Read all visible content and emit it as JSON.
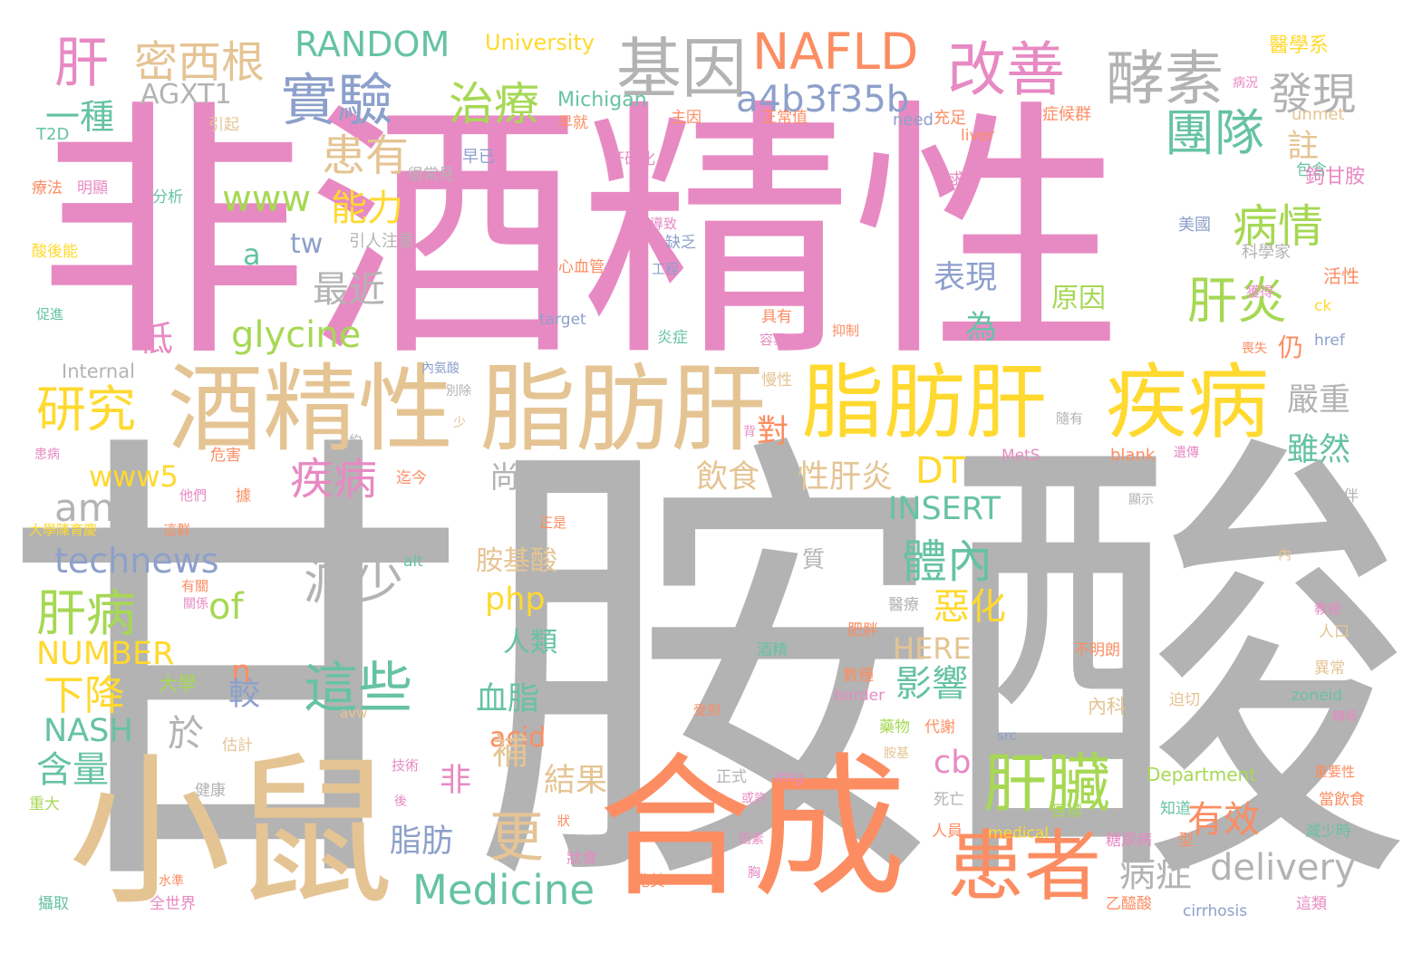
{
  "palette": {
    "pink": "#e78ac3",
    "gray": "#b3b3b3",
    "tan": "#e5c494",
    "orange": "#fc8d62",
    "yellow": "#ffd92f",
    "green": "#a6d854",
    "teal": "#66c2a5",
    "blue": "#8da0cb"
  },
  "words": [
    {
      "text": "非酒精性",
      "color": "pink"
    },
    {
      "text": "甘胺酸",
      "color": "gray"
    },
    {
      "text": "小鼠",
      "color": "tan"
    },
    {
      "text": "合成",
      "color": "orange"
    },
    {
      "text": "酒精性",
      "color": "tan"
    },
    {
      "text": "脂肪肝",
      "color": "tan"
    },
    {
      "text": "脂肪肝",
      "color": "yellow"
    },
    {
      "text": "疾病",
      "color": "yellow"
    },
    {
      "text": "患者",
      "color": "orange"
    },
    {
      "text": "肝臟",
      "color": "green"
    },
    {
      "text": "基因",
      "color": "gray"
    },
    {
      "text": "NAFLD",
      "color": "orange"
    },
    {
      "text": "改善",
      "color": "pink"
    },
    {
      "text": "酵素",
      "color": "gray"
    },
    {
      "text": "實驗",
      "color": "blue"
    },
    {
      "text": "肝",
      "color": "pink"
    },
    {
      "text": "密西根",
      "color": "tan"
    },
    {
      "text": "RANDOM",
      "color": "teal"
    },
    {
      "text": "University",
      "color": "yellow"
    },
    {
      "text": "治療",
      "color": "green"
    },
    {
      "text": "a4b3f35b",
      "color": "blue"
    },
    {
      "text": "發現",
      "color": "gray"
    },
    {
      "text": "醫學系",
      "color": "yellow"
    },
    {
      "text": "AGXT1",
      "color": "gray"
    },
    {
      "text": "一種",
      "color": "teal"
    },
    {
      "text": "Michigan",
      "color": "teal"
    },
    {
      "text": "早就",
      "color": "orange"
    },
    {
      "text": "病況",
      "color": "pink"
    },
    {
      "text": "unmet",
      "color": "tan"
    },
    {
      "text": "團隊",
      "color": "teal"
    },
    {
      "text": "患有",
      "color": "tan"
    },
    {
      "text": "主因",
      "color": "orange"
    },
    {
      "text": "正常值",
      "color": "orange"
    },
    {
      "text": "need",
      "color": "blue"
    },
    {
      "text": "充足",
      "color": "orange"
    },
    {
      "text": "症候群",
      "color": "orange"
    },
    {
      "text": "註",
      "color": "tan"
    },
    {
      "text": "引起",
      "color": "tan"
    },
    {
      "text": "T2D",
      "color": "teal"
    },
    {
      "text": "liver",
      "color": "orange"
    },
    {
      "text": "早已",
      "color": "blue"
    },
    {
      "text": "很常見",
      "color": "gray"
    },
    {
      "text": "肝硬化",
      "color": "pink"
    },
    {
      "text": "需求",
      "color": "pink"
    },
    {
      "text": "包含",
      "color": "teal"
    },
    {
      "text": "鉤甘胺",
      "color": "pink"
    },
    {
      "text": "療法",
      "color": "orange"
    },
    {
      "text": "明顯",
      "color": "pink"
    },
    {
      "text": "分析",
      "color": "teal"
    },
    {
      "text": "www",
      "color": "green"
    },
    {
      "text": "能力",
      "color": "yellow"
    },
    {
      "text": "病情",
      "color": "green"
    },
    {
      "text": "a",
      "color": "teal"
    },
    {
      "text": "tw",
      "color": "blue"
    },
    {
      "text": "引人注意",
      "color": "gray"
    },
    {
      "text": "導致",
      "color": "pink"
    },
    {
      "text": "缺乏",
      "color": "blue"
    },
    {
      "text": "美國",
      "color": "blue"
    },
    {
      "text": "科學家",
      "color": "gray"
    },
    {
      "text": "酸後能",
      "color": "yellow"
    },
    {
      "text": "心血管",
      "color": "orange"
    },
    {
      "text": "工程",
      "color": "blue"
    },
    {
      "text": "表現",
      "color": "blue"
    },
    {
      "text": "最近",
      "color": "gray"
    },
    {
      "text": "肝炎",
      "color": "green"
    },
    {
      "text": "原因",
      "color": "green"
    },
    {
      "text": "獲得",
      "color": "pink"
    },
    {
      "text": "活性",
      "color": "orange"
    },
    {
      "text": "促進",
      "color": "teal"
    },
    {
      "text": "target",
      "color": "blue"
    },
    {
      "text": "具有",
      "color": "orange"
    },
    {
      "text": "抑制",
      "color": "orange"
    },
    {
      "text": "為",
      "color": "teal"
    },
    {
      "text": "ck",
      "color": "yellow"
    },
    {
      "text": "glycine",
      "color": "green"
    },
    {
      "text": "低",
      "color": "pink"
    },
    {
      "text": "炎症",
      "color": "teal"
    },
    {
      "text": "容易",
      "color": "pink"
    },
    {
      "text": "仍",
      "color": "orange"
    },
    {
      "text": "喪失",
      "color": "orange"
    },
    {
      "text": "href",
      "color": "blue"
    },
    {
      "text": "Internal",
      "color": "gray"
    },
    {
      "text": "內氨酸",
      "color": "blue"
    },
    {
      "text": "慢性",
      "color": "tan"
    },
    {
      "text": "研究",
      "color": "yellow"
    },
    {
      "text": "別除",
      "color": "gray"
    },
    {
      "text": "嚴重",
      "color": "gray"
    },
    {
      "text": "少",
      "color": "tan"
    },
    {
      "text": "對",
      "color": "orange"
    },
    {
      "text": "隨有",
      "color": "gray"
    },
    {
      "text": "背",
      "color": "pink"
    },
    {
      "text": "患病",
      "color": "pink"
    },
    {
      "text": "約",
      "color": "gray"
    },
    {
      "text": "雖然",
      "color": "teal"
    },
    {
      "text": "危害",
      "color": "orange"
    },
    {
      "text": "www5",
      "color": "yellow"
    },
    {
      "text": "疾病",
      "color": "pink"
    },
    {
      "text": "迄今",
      "color": "orange"
    },
    {
      "text": "尚未",
      "color": "gray"
    },
    {
      "text": "飲食",
      "color": "tan"
    },
    {
      "text": "性肝炎",
      "color": "tan"
    },
    {
      "text": "DT",
      "color": "yellow"
    },
    {
      "text": "MetS",
      "color": "pink"
    },
    {
      "text": "遺傳",
      "color": "pink"
    },
    {
      "text": "blank",
      "color": "orange"
    },
    {
      "text": "amp",
      "color": "gray"
    },
    {
      "text": "他們",
      "color": "pink"
    },
    {
      "text": "據",
      "color": "orange"
    },
    {
      "text": "顯示",
      "color": "gray"
    },
    {
      "text": "常伴",
      "color": "gray"
    },
    {
      "text": "INSERT",
      "color": "teal"
    },
    {
      "text": "大學陳育慶",
      "color": "yellow"
    },
    {
      "text": "這群",
      "color": "orange"
    },
    {
      "text": "正是",
      "color": "orange"
    },
    {
      "text": "形成",
      "color": "gray"
    },
    {
      "text": "technews",
      "color": "blue"
    },
    {
      "text": "減少",
      "color": "gray"
    },
    {
      "text": "胺基酸",
      "color": "tan"
    },
    {
      "text": "體內",
      "color": "teal"
    },
    {
      "text": "alt",
      "color": "teal"
    },
    {
      "text": "質",
      "color": "gray"
    },
    {
      "text": "內",
      "color": "tan"
    },
    {
      "text": "有關",
      "color": "orange"
    },
    {
      "text": "關係",
      "color": "pink"
    },
    {
      "text": "肝病",
      "color": "green"
    },
    {
      "text": "of",
      "color": "green"
    },
    {
      "text": "php",
      "color": "yellow"
    },
    {
      "text": "惡化",
      "color": "yellow"
    },
    {
      "text": "醫療",
      "color": "gray"
    },
    {
      "text": "教授",
      "color": "pink"
    },
    {
      "text": "NUMBER",
      "color": "yellow"
    },
    {
      "text": "人類",
      "color": "teal"
    },
    {
      "text": "肥胖",
      "color": "orange"
    },
    {
      "text": "HERE",
      "color": "tan"
    },
    {
      "text": "不明朗",
      "color": "orange"
    },
    {
      "text": "人口",
      "color": "tan"
    },
    {
      "text": "n",
      "color": "orange"
    },
    {
      "text": "酒精",
      "color": "teal"
    },
    {
      "text": "下降",
      "color": "yellow"
    },
    {
      "text": "這些",
      "color": "teal"
    },
    {
      "text": "異常",
      "color": "tan"
    },
    {
      "text": "大學",
      "color": "green"
    },
    {
      "text": "數種",
      "color": "orange"
    },
    {
      "text": "較",
      "color": "blue"
    },
    {
      "text": "border",
      "color": "pink"
    },
    {
      "text": "影響",
      "color": "teal"
    },
    {
      "text": "血脂",
      "color": "teal"
    },
    {
      "text": "avw",
      "color": "tan"
    },
    {
      "text": "內科",
      "color": "tan"
    },
    {
      "text": "迫切",
      "color": "tan"
    },
    {
      "text": "zoneid",
      "color": "teal"
    },
    {
      "text": "NASH",
      "color": "teal"
    },
    {
      "text": "受到",
      "color": "orange"
    },
    {
      "text": "轉移",
      "color": "pink"
    },
    {
      "text": "藥物",
      "color": "green"
    },
    {
      "text": "代謝",
      "color": "orange"
    },
    {
      "text": "估計",
      "color": "tan"
    },
    {
      "text": "acid",
      "color": "orange"
    },
    {
      "text": "src",
      "color": "blue"
    },
    {
      "text": "於",
      "color": "gray"
    },
    {
      "text": "胺基",
      "color": "tan"
    },
    {
      "text": "含量",
      "color": "teal"
    },
    {
      "text": "cb",
      "color": "pink"
    },
    {
      "text": "技術",
      "color": "pink"
    },
    {
      "text": "正式",
      "color": "gray"
    },
    {
      "text": "img",
      "color": "pink"
    },
    {
      "text": "Department",
      "color": "green"
    },
    {
      "text": "重要性",
      "color": "orange"
    },
    {
      "text": "非",
      "color": "pink"
    },
    {
      "text": "補",
      "color": "tan"
    },
    {
      "text": "結果",
      "color": "tan"
    },
    {
      "text": "或許",
      "color": "pink"
    },
    {
      "text": "健康",
      "color": "gray"
    },
    {
      "text": "死亡",
      "color": "gray"
    },
    {
      "text": "重大",
      "color": "green"
    },
    {
      "text": "後",
      "color": "pink"
    },
    {
      "text": "知道",
      "color": "teal"
    },
    {
      "text": "當飲食",
      "color": "orange"
    },
    {
      "text": "有效",
      "color": "orange"
    },
    {
      "text": "更",
      "color": "tan"
    },
    {
      "text": "目標",
      "color": "green"
    },
    {
      "text": "狀",
      "color": "orange"
    },
    {
      "text": "人員",
      "color": "orange"
    },
    {
      "text": "medical",
      "color": "yellow"
    },
    {
      "text": "減少時",
      "color": "teal"
    },
    {
      "text": "脂肪",
      "color": "blue"
    },
    {
      "text": "因素",
      "color": "pink"
    },
    {
      "text": "糖尿病",
      "color": "pink"
    },
    {
      "text": "型",
      "color": "orange"
    },
    {
      "text": "狀會",
      "color": "pink"
    },
    {
      "text": "病症",
      "color": "gray"
    },
    {
      "text": "delivery",
      "color": "gray"
    },
    {
      "text": "Medicine",
      "color": "teal"
    },
    {
      "text": "水準",
      "color": "orange"
    },
    {
      "text": "胸",
      "color": "pink"
    },
    {
      "text": "尤其",
      "color": "orange"
    },
    {
      "text": "攝取",
      "color": "teal"
    },
    {
      "text": "全世界",
      "color": "pink"
    },
    {
      "text": "乙醯酸",
      "color": "orange"
    },
    {
      "text": "這類",
      "color": "pink"
    },
    {
      "text": "cirrhosis",
      "color": "blue"
    }
  ]
}
